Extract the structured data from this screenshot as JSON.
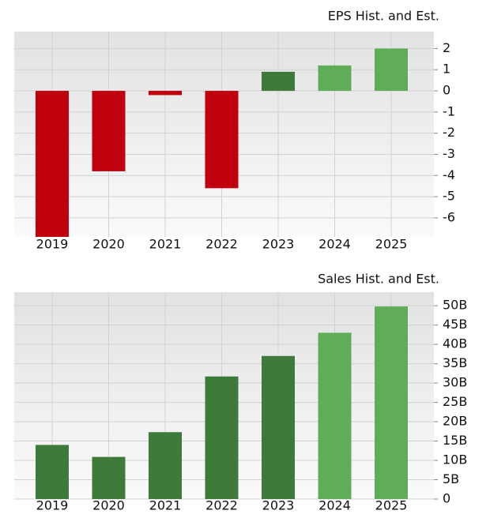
{
  "chart_data": [
    {
      "type": "bar",
      "title": "EPS Hist. and Est.",
      "categories": [
        "2019",
        "2020",
        "2021",
        "2022",
        "2023",
        "2024",
        "2025"
      ],
      "values": [
        -6.9,
        -3.8,
        -0.2,
        -4.6,
        0.9,
        1.2,
        2.0
      ],
      "colors": [
        "#c0000c",
        "#c0000c",
        "#c0000c",
        "#c0000c",
        "#3e7b3a",
        "#5fae57",
        "#5fae57"
      ],
      "ylim": [
        -6.9,
        2.8
      ],
      "yticks": [
        2,
        1,
        0,
        -1,
        -2,
        -3,
        -4,
        -5,
        -6
      ],
      "grid": true
    },
    {
      "type": "bar",
      "title": "Sales Hist. and Est.",
      "categories": [
        "2019",
        "2020",
        "2021",
        "2022",
        "2023",
        "2024",
        "2025"
      ],
      "values": [
        14.0,
        10.9,
        17.3,
        31.7,
        37.0,
        43.0,
        49.8
      ],
      "colors": [
        "#3e7b3a",
        "#3e7b3a",
        "#3e7b3a",
        "#3e7b3a",
        "#3e7b3a",
        "#5fae57",
        "#5fae57"
      ],
      "ylim": [
        0,
        53.5
      ],
      "yticks": [
        {
          "value": 50,
          "label": "50B"
        },
        {
          "value": 45,
          "label": "45B"
        },
        {
          "value": 40,
          "label": "40B"
        },
        {
          "value": 35,
          "label": "35B"
        },
        {
          "value": 30,
          "label": "30B"
        },
        {
          "value": 25,
          "label": "25B"
        },
        {
          "value": 20,
          "label": "20B"
        },
        {
          "value": 15,
          "label": "15B"
        },
        {
          "value": 10,
          "label": "10B"
        },
        {
          "value": 5,
          "label": "5B"
        },
        0
      ],
      "grid": true
    }
  ]
}
